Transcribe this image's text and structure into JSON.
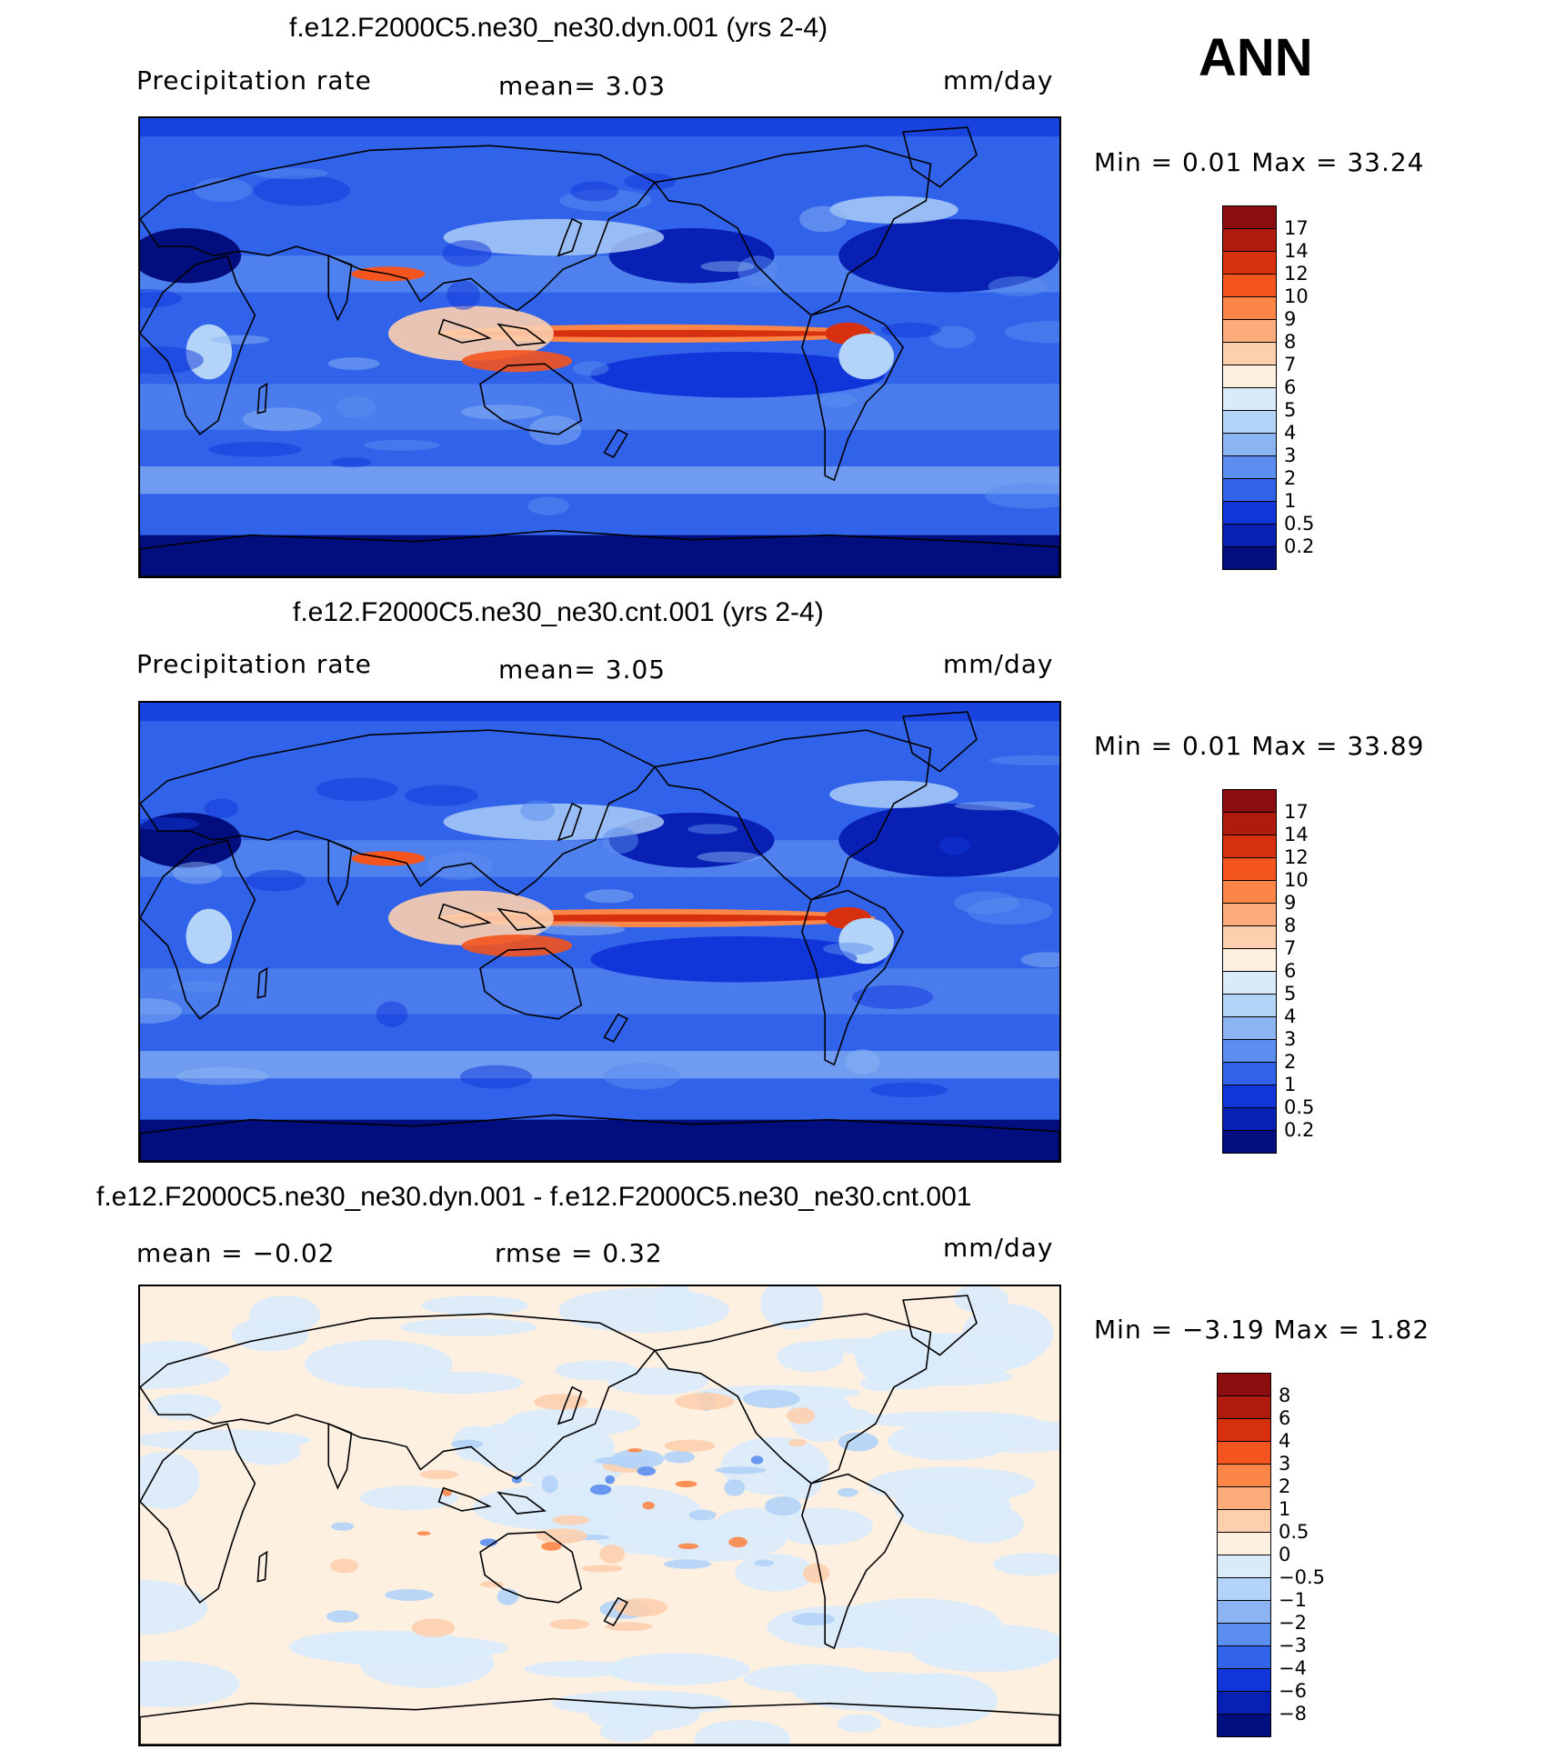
{
  "header": {
    "season": "ANN"
  },
  "panels": [
    {
      "title": "f.e12.F2000C5.ne30_ne30.dyn.001 (yrs 2-4)",
      "left_label": "Precipitation rate",
      "center_label": "mean=    3.03",
      "right_label": "mm/day",
      "minmax": "Min =    0.01  Max =   33.24",
      "kind": "precip",
      "colorbar": {
        "ticks": [
          "17",
          "14",
          "12",
          "10",
          "9",
          "8",
          "7",
          "6",
          "5",
          "4",
          "3",
          "2",
          "1",
          "0.5",
          "0.2"
        ],
        "colors": [
          "#8b0d0d",
          "#b11b0d",
          "#d7300f",
          "#f4541d",
          "#fb8648",
          "#fcab7a",
          "#fdcfae",
          "#fef0e0",
          "#d9ebfb",
          "#b3d3f8",
          "#8ab4f2",
          "#5b8ef0",
          "#3162ea",
          "#1036d9",
          "#0820b4",
          "#020e7d"
        ]
      }
    },
    {
      "title": "f.e12.F2000C5.ne30_ne30.cnt.001 (yrs 2-4)",
      "left_label": "Precipitation rate",
      "center_label": "mean=    3.05",
      "right_label": "mm/day",
      "minmax": "Min =    0.01  Max =   33.89",
      "kind": "precip",
      "colorbar": {
        "ticks": [
          "17",
          "14",
          "12",
          "10",
          "9",
          "8",
          "7",
          "6",
          "5",
          "4",
          "3",
          "2",
          "1",
          "0.5",
          "0.2"
        ],
        "colors": [
          "#8b0d0d",
          "#b11b0d",
          "#d7300f",
          "#f4541d",
          "#fb8648",
          "#fcab7a",
          "#fdcfae",
          "#fef0e0",
          "#d9ebfb",
          "#b3d3f8",
          "#8ab4f2",
          "#5b8ef0",
          "#3162ea",
          "#1036d9",
          "#0820b4",
          "#020e7d"
        ]
      }
    },
    {
      "title": "f.e12.F2000C5.ne30_ne30.dyn.001 - f.e12.F2000C5.ne30_ne30.cnt.001",
      "left_label": "mean =   −0.02",
      "center_label": "rmse =    0.32",
      "right_label": "mm/day",
      "minmax": "Min =   −3.19  Max =     1.82",
      "kind": "diff",
      "colorbar": {
        "ticks": [
          "8",
          "6",
          "4",
          "3",
          "2",
          "1",
          "0.5",
          "0",
          "−0.5",
          "−1",
          "−2",
          "−3",
          "−4",
          "−6",
          "−8"
        ],
        "colors": [
          "#8b0d0d",
          "#b11b0d",
          "#d7300f",
          "#f4541d",
          "#fb8648",
          "#fcab7a",
          "#fdcfae",
          "#fef0e0",
          "#d9ebfb",
          "#b3d3f8",
          "#8ab4f2",
          "#5b8ef0",
          "#3162ea",
          "#1036d9",
          "#0820b4",
          "#020e7d"
        ]
      }
    }
  ]
}
